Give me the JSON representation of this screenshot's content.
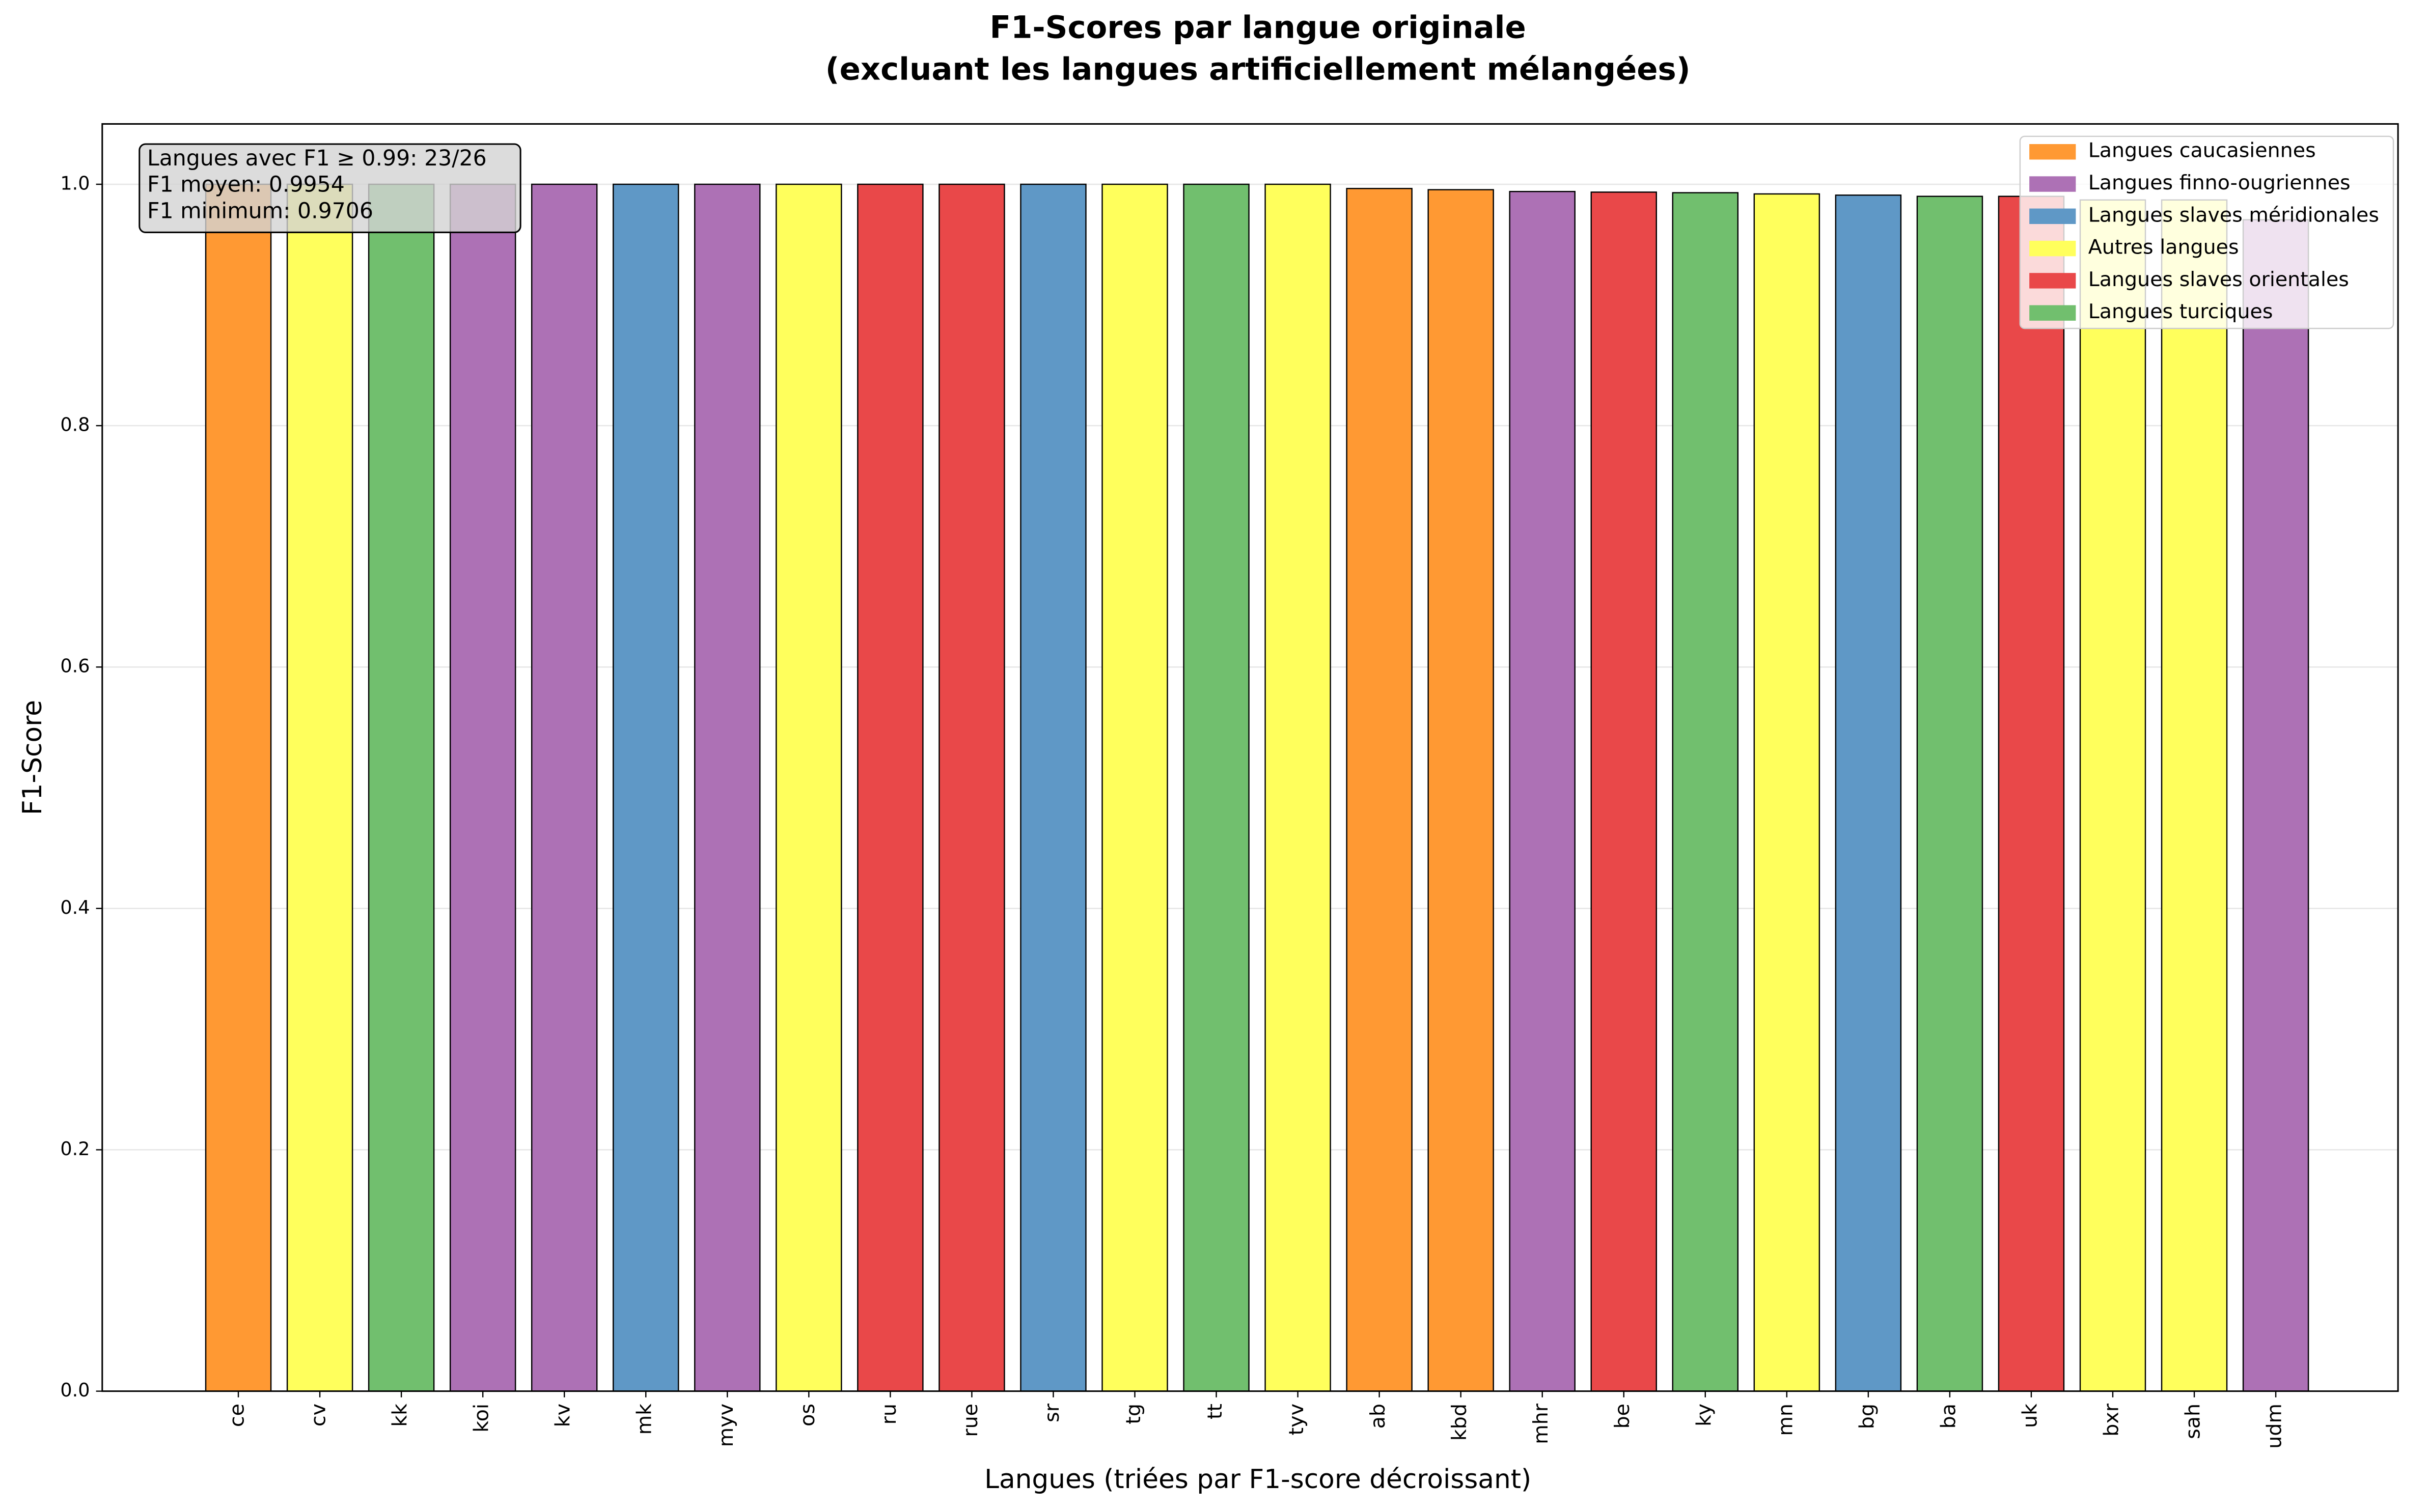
{
  "chart_data": {
    "type": "bar",
    "title": "F1-Scores par langue originale",
    "subtitle": "(excluant les langues artificiellement mélangées)",
    "x_label": "Langues (triées par F1-score décroissant)",
    "y_label": "F1-Score",
    "categories": [
      "ce",
      "cv",
      "kk",
      "koi",
      "kv",
      "mk",
      "myv",
      "os",
      "ru",
      "rue",
      "sr",
      "tg",
      "tt",
      "tyv",
      "ab",
      "kbd",
      "mhr",
      "be",
      "ky",
      "mn",
      "bg",
      "ba",
      "uk",
      "bxr",
      "sah",
      "udm"
    ],
    "values": [
      1.0,
      1.0,
      1.0,
      1.0,
      1.0,
      1.0,
      1.0,
      1.0,
      1.0,
      1.0,
      1.0,
      1.0,
      1.0,
      1.0,
      0.9965,
      0.9955,
      0.994,
      0.9935,
      0.993,
      0.992,
      0.991,
      0.99,
      0.99,
      0.987,
      0.987,
      0.9706
    ],
    "colors": [
      "#ff9933",
      "#ffff5c",
      "#71bf6e",
      "#ad71b5",
      "#ad71b5",
      "#5f98c6",
      "#ad71b5",
      "#ffff5c",
      "#e94849",
      "#e94849",
      "#5f98c6",
      "#ffff5c",
      "#71bf6e",
      "#ffff5c",
      "#ff9933",
      "#ff9933",
      "#ad71b5",
      "#e94849",
      "#71bf6e",
      "#ffff5c",
      "#5f98c6",
      "#71bf6e",
      "#e94849",
      "#ffff5c",
      "#ffff5c",
      "#ad71b5"
    ],
    "legend": [
      {
        "name": "Langues caucasiennes",
        "color": "#ff9933"
      },
      {
        "name": "Langues finno-ougriennes",
        "color": "#ad71b5"
      },
      {
        "name": "Langues slaves méridionales",
        "color": "#5f98c6"
      },
      {
        "name": "Autres langues",
        "color": "#ffff5c"
      },
      {
        "name": "Langues slaves orientales",
        "color": "#e94849"
      },
      {
        "name": "Langues turciques",
        "color": "#71bf6e"
      }
    ],
    "legend_position": "upper right",
    "annotation": [
      "Langues avec F1 ≥ 0.99: 23/26",
      "F1 moyen: 0.9954",
      "F1 minimum: 0.9706"
    ],
    "ylim": [
      0,
      1.05
    ],
    "yticks": [
      {
        "value": 0,
        "label": "0.0"
      },
      {
        "value": 0.2,
        "label": "0.2"
      },
      {
        "value": 0.4,
        "label": "0.4"
      },
      {
        "value": 0.6,
        "label": "0.6"
      },
      {
        "value": 0.8,
        "label": "0.8"
      },
      {
        "value": 1.0,
        "label": "1.0"
      }
    ],
    "grid": true
  }
}
